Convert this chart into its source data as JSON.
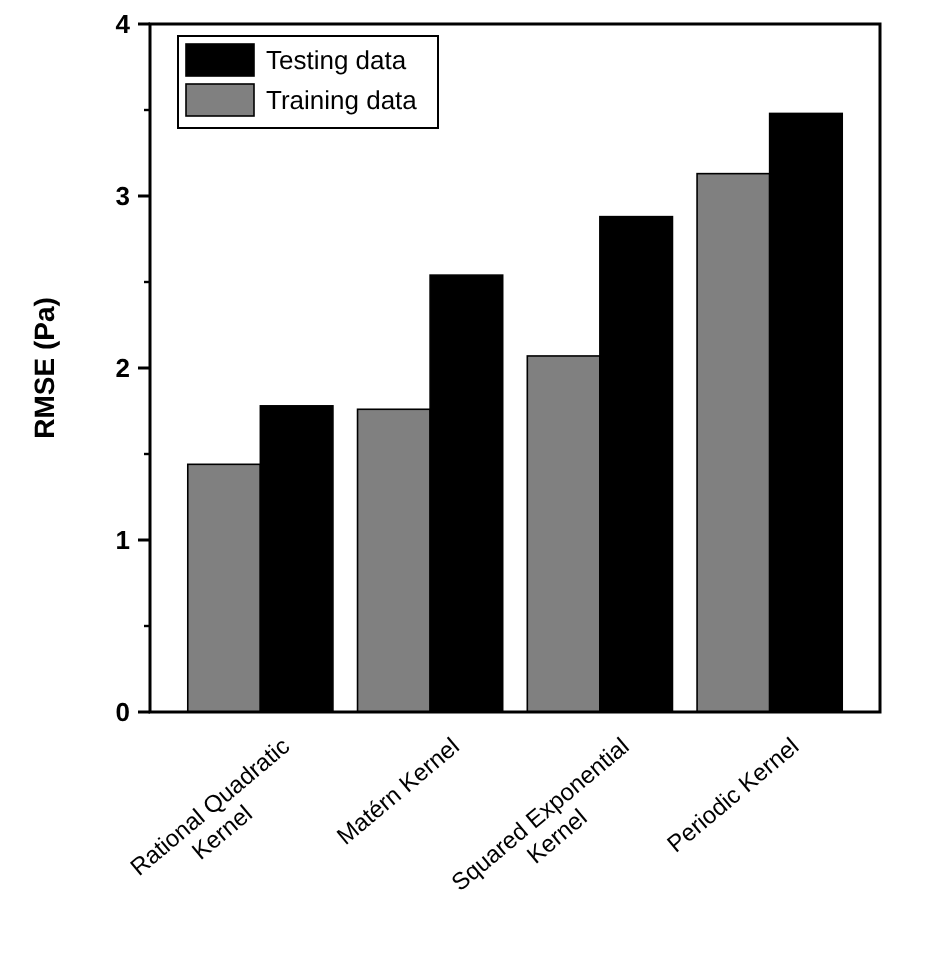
{
  "chart_data": {
    "type": "bar",
    "ylabel": "RMSE (Pa)",
    "categories": [
      "Rational Quadratic Kernel",
      "Matérn Kernel",
      "Squared Exponential Kernel",
      "Periodic Kernel"
    ],
    "series": [
      {
        "name": "Training data",
        "color": "#808080",
        "values": [
          1.44,
          1.76,
          2.07,
          3.13
        ]
      },
      {
        "name": "Testing data",
        "color": "#000000",
        "values": [
          1.78,
          2.54,
          2.88,
          3.48
        ]
      }
    ],
    "ylim": [
      0,
      4
    ],
    "yticks": [
      0,
      1,
      2,
      3,
      4
    ],
    "legend": "top left",
    "grid": false
  }
}
